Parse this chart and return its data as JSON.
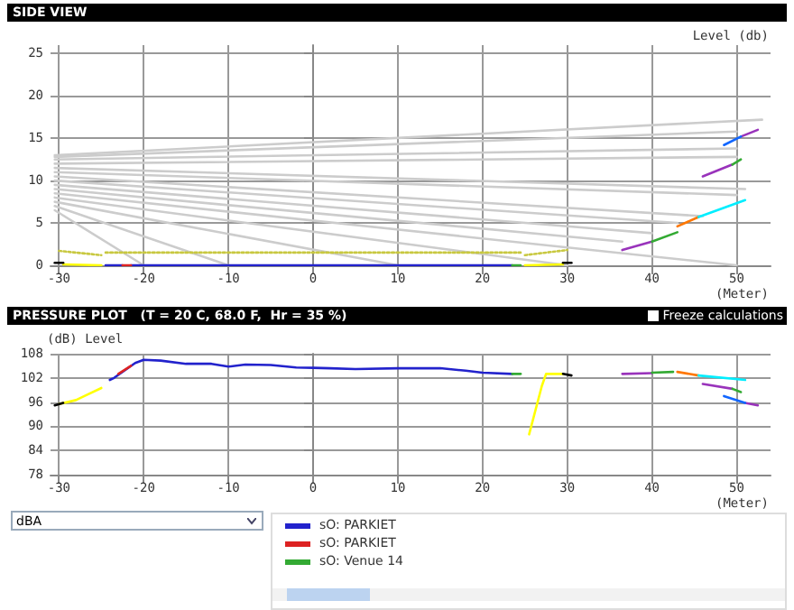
{
  "chart_data": [
    {
      "type": "line",
      "title": "SIDE VIEW",
      "ylabel": "Level (db)",
      "xlabel": "(Meter)",
      "xlim": [
        -31,
        54
      ],
      "ylim": [
        0,
        26
      ],
      "xticks": [
        -30,
        -20,
        -10,
        0,
        10,
        20,
        30,
        40,
        50
      ],
      "yticks": [
        0,
        5,
        10,
        15,
        20,
        25
      ],
      "grid": true,
      "legend": false,
      "marker": "none",
      "series": [
        {
          "color": "#cccccc",
          "x": [
            -30.5,
            53
          ],
          "values": [
            13,
            17.2
          ]
        },
        {
          "color": "#cccccc",
          "x": [
            -30.5,
            50
          ],
          "values": [
            12.8,
            15.8
          ]
        },
        {
          "color": "#cccccc",
          "x": [
            -30.5,
            50
          ],
          "values": [
            12.5,
            13.8
          ]
        },
        {
          "color": "#cccccc",
          "x": [
            -30.5,
            50
          ],
          "values": [
            12,
            12.8
          ]
        },
        {
          "color": "#cccccc",
          "x": [
            -30.5,
            51
          ],
          "values": [
            11.5,
            9
          ]
        },
        {
          "color": "#cccccc",
          "x": [
            -30.5,
            50
          ],
          "values": [
            11,
            8.3
          ]
        },
        {
          "color": "#cccccc",
          "x": [
            -30.5,
            46
          ],
          "values": [
            10.5,
            5.8
          ]
        },
        {
          "color": "#cccccc",
          "x": [
            -30.5,
            43
          ],
          "values": [
            10,
            5
          ]
        },
        {
          "color": "#cccccc",
          "x": [
            -30.5,
            40
          ],
          "values": [
            9.5,
            3.8
          ]
        },
        {
          "color": "#cccccc",
          "x": [
            -30.5,
            36.5
          ],
          "values": [
            9,
            2.8
          ]
        },
        {
          "color": "#cccccc",
          "x": [
            -30.5,
            50
          ],
          "values": [
            8.5,
            0
          ]
        },
        {
          "color": "#cccccc",
          "x": [
            -30.5,
            30
          ],
          "values": [
            8,
            0
          ]
        },
        {
          "color": "#cccccc",
          "x": [
            -30.5,
            10
          ],
          "values": [
            7.5,
            0
          ]
        },
        {
          "color": "#cccccc",
          "x": [
            -30.5,
            -10
          ],
          "values": [
            7,
            0
          ]
        },
        {
          "color": "#cccccc",
          "x": [
            -30.5,
            -20
          ],
          "values": [
            6.5,
            0
          ]
        },
        {
          "color": "#c8c840",
          "line_style": "dotted",
          "x": [
            -30,
            -25
          ],
          "values": [
            1.7,
            1.2
          ]
        },
        {
          "color": "#c8c840",
          "line_style": "dotted",
          "x": [
            -24.5,
            24.5
          ],
          "values": [
            1.5,
            1.5
          ]
        },
        {
          "color": "#c8c840",
          "line_style": "dotted",
          "x": [
            25,
            30
          ],
          "values": [
            1.2,
            1.8
          ]
        },
        {
          "color": "#ffff00",
          "x": [
            -29.5,
            -25
          ],
          "values": [
            0.1,
            0
          ]
        },
        {
          "color": "#ffff00",
          "x": [
            25,
            29.5
          ],
          "values": [
            0,
            0.1
          ]
        },
        {
          "color": "#2222cc",
          "x": [
            -24.5,
            -22.5
          ],
          "values": [
            0,
            0
          ]
        },
        {
          "color": "#2222cc",
          "x": [
            -21.5,
            23.5
          ],
          "values": [
            0,
            0
          ]
        },
        {
          "color": "#dd2222",
          "x": [
            -22.5,
            -21.5
          ],
          "values": [
            0,
            0
          ]
        },
        {
          "color": "#33aa33",
          "x": [
            23.5,
            24.5
          ],
          "values": [
            0,
            0
          ]
        },
        {
          "color": "#000000",
          "x": [
            -30.5,
            -29.5
          ],
          "values": [
            0.3,
            0.3
          ]
        },
        {
          "color": "#000000",
          "x": [
            29.5,
            30.5
          ],
          "values": [
            0.3,
            0.3
          ]
        },
        {
          "color": "#9933bb",
          "x": [
            36.5,
            40
          ],
          "values": [
            1.8,
            2.8
          ]
        },
        {
          "color": "#9933bb",
          "x": [
            46,
            49.5
          ],
          "values": [
            10.5,
            11.9
          ]
        },
        {
          "color": "#9933bb",
          "x": [
            50.5,
            52.5
          ],
          "values": [
            15.2,
            16
          ]
        },
        {
          "color": "#33aa33",
          "x": [
            40,
            43
          ],
          "values": [
            2.8,
            3.9
          ]
        },
        {
          "color": "#33aa33",
          "x": [
            49.5,
            50.5
          ],
          "values": [
            11.9,
            12.5
          ]
        },
        {
          "color": "#ff7700",
          "x": [
            43,
            45.5
          ],
          "values": [
            4.6,
            5.7
          ]
        },
        {
          "color": "#00eeff",
          "x": [
            45.5,
            51
          ],
          "values": [
            5.7,
            7.7
          ]
        },
        {
          "color": "#1166ff",
          "x": [
            48.5,
            50.5
          ],
          "values": [
            14.2,
            15.2
          ]
        }
      ]
    },
    {
      "type": "line",
      "title": "PRESSURE PLOT   (T = 20 C, 68.0 F,  Hr = 35 %)",
      "ylabel": "(dB) Level",
      "xlabel": "(Meter)",
      "xlim": [
        -31,
        54
      ],
      "ylim": [
        78,
        108
      ],
      "xticks": [
        -30,
        -20,
        -10,
        0,
        10,
        20,
        30,
        40,
        50
      ],
      "yticks": [
        78,
        84,
        90,
        96,
        102,
        108
      ],
      "grid": true,
      "legend": "bottom",
      "marker": "none",
      "annotations": [
        "Freeze calculations",
        "dBA"
      ],
      "series": [
        {
          "color": "#ffff00",
          "x": [
            -30,
            -28,
            -27,
            -25
          ],
          "values": [
            95.5,
            96.5,
            97.5,
            99.5
          ]
        },
        {
          "color": "#ffff00",
          "x": [
            25.5,
            27,
            27.5,
            29.5
          ],
          "values": [
            88,
            100,
            103,
            103
          ]
        },
        {
          "name": "sO: PARKIET",
          "color": "#2222cc",
          "x": [
            -24,
            -23.5,
            -21,
            -20,
            -18,
            -15,
            -12,
            -10,
            -8,
            -5,
            -2,
            0,
            2,
            5,
            10,
            15,
            18,
            20,
            23.5
          ],
          "values": [
            101.5,
            102,
            105.7,
            106.5,
            106.3,
            105.5,
            105.5,
            104.8,
            105.3,
            105.2,
            104.6,
            104.5,
            104.4,
            104.2,
            104.4,
            104.4,
            103.8,
            103.3,
            103
          ]
        },
        {
          "name": "sO: PARKIET",
          "color": "#dd2222",
          "x": [
            -23,
            -21.5
          ],
          "values": [
            103,
            105
          ]
        },
        {
          "name": "sO: Venue 14",
          "color": "#33aa33",
          "x": [
            23.5,
            24.5
          ],
          "values": [
            103,
            103
          ]
        },
        {
          "color": "#000000",
          "x": [
            -30.5,
            -29.5
          ],
          "values": [
            95.2,
            95.8
          ]
        },
        {
          "color": "#000000",
          "x": [
            29.5,
            30.5
          ],
          "values": [
            103,
            102.6
          ]
        },
        {
          "color": "#9933bb",
          "x": [
            36.5,
            40
          ],
          "values": [
            103,
            103.2
          ]
        },
        {
          "color": "#9933bb",
          "x": [
            46,
            49.5
          ],
          "values": [
            100.5,
            99.3
          ]
        },
        {
          "color": "#9933bb",
          "x": [
            51,
            52.5
          ],
          "values": [
            95.8,
            95.2
          ]
        },
        {
          "color": "#33aa33",
          "x": [
            40,
            42.5
          ],
          "values": [
            103.3,
            103.5
          ]
        },
        {
          "color": "#33aa33",
          "x": [
            49.5,
            50.5
          ],
          "values": [
            99.3,
            98.5
          ]
        },
        {
          "color": "#ff7700",
          "x": [
            43,
            45.5
          ],
          "values": [
            103.5,
            102.6
          ]
        },
        {
          "color": "#00eeff",
          "x": [
            45.5,
            51
          ],
          "values": [
            102.6,
            101.5
          ]
        },
        {
          "color": "#1166ff",
          "x": [
            48.5,
            51
          ],
          "values": [
            97.5,
            95.8
          ]
        }
      ]
    }
  ]
}
